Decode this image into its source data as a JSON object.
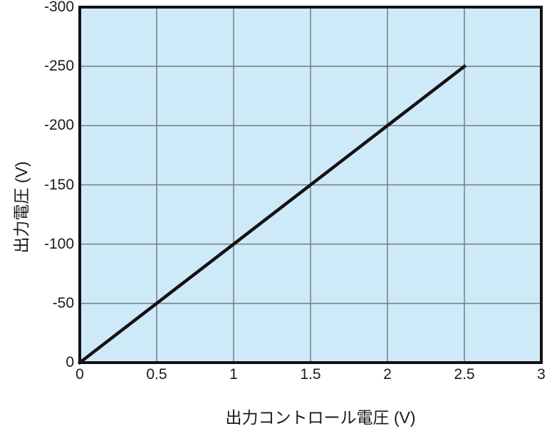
{
  "figure": {
    "background": "#ffffff"
  },
  "chart_data": {
    "type": "line",
    "title": "",
    "xlabel": "出力コントロール電圧 (V)",
    "ylabel": "出力電圧 (V)",
    "xlim": [
      0,
      3
    ],
    "ylim_bottom_to_top": [
      0,
      -300
    ],
    "grid": true,
    "legend": false,
    "xticks": {
      "values": [
        0,
        0.5,
        1,
        1.5,
        2,
        2.5,
        3
      ],
      "labels": [
        "0",
        "0.5",
        "1",
        "1.5",
        "2",
        "2.5",
        "3"
      ]
    },
    "yticks": {
      "values": [
        0,
        -50,
        -100,
        -150,
        -200,
        -250,
        -300
      ],
      "labels": [
        "0",
        "-50",
        "-100",
        "-150",
        "-200",
        "-250",
        "-300"
      ]
    },
    "series": [
      {
        "name": "出力電圧",
        "points": [
          [
            0,
            0
          ],
          [
            0.5,
            -50
          ],
          [
            1,
            -100
          ],
          [
            1.5,
            -150
          ],
          [
            2,
            -200
          ],
          [
            2.5,
            -250
          ]
        ]
      }
    ],
    "colors": {
      "plot_background": "#cee9f8",
      "grid": "#6d7f88",
      "line": "#121212",
      "border": "#121212",
      "text": "#1a1a1a"
    }
  }
}
